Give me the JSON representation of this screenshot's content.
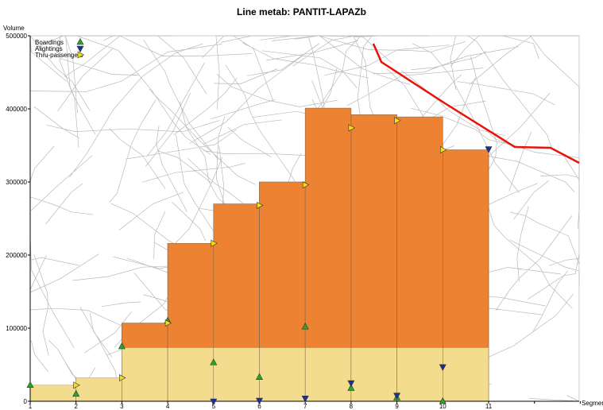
{
  "chart_data": {
    "type": "bar",
    "title": "Line metab: PANTIT-LAPAZb",
    "ylabel": "Volume",
    "xlabel": "Segment",
    "ylim": [
      0,
      500000
    ],
    "y_ticks": [
      0,
      100000,
      200000,
      300000,
      400000,
      500000
    ],
    "x_ticks": [
      1,
      2,
      3,
      4,
      5,
      6,
      7,
      8,
      9,
      10,
      11
    ],
    "segments": [
      {
        "from": 1,
        "to": 2,
        "volume": 22000,
        "base_volume": 22000
      },
      {
        "from": 2,
        "to": 3,
        "volume": 32000,
        "base_volume": 32000
      },
      {
        "from": 3,
        "to": 4,
        "volume": 107000,
        "base_volume": 73000
      },
      {
        "from": 4,
        "to": 5,
        "volume": 216000,
        "base_volume": 73000
      },
      {
        "from": 5,
        "to": 6,
        "volume": 270000,
        "base_volume": 73000
      },
      {
        "from": 6,
        "to": 7,
        "volume": 300000,
        "base_volume": 73000
      },
      {
        "from": 7,
        "to": 8,
        "volume": 401000,
        "base_volume": 73000
      },
      {
        "from": 8,
        "to": 9,
        "volume": 392000,
        "base_volume": 73000
      },
      {
        "from": 9,
        "to": 10,
        "volume": 389000,
        "base_volume": 73000
      },
      {
        "from": 10,
        "to": 11,
        "volume": 344000,
        "base_volume": 73000
      }
    ],
    "series": [
      {
        "name": "Boardings",
        "marker": "triangle-up",
        "color": "#22aa22",
        "points": [
          [
            1,
            22000
          ],
          [
            2,
            10000
          ],
          [
            3,
            75000
          ],
          [
            4,
            110000
          ],
          [
            5,
            53000
          ],
          [
            6,
            33000
          ],
          [
            7,
            102000
          ],
          [
            8,
            18000
          ],
          [
            9,
            5000
          ],
          [
            10,
            0
          ]
        ]
      },
      {
        "name": "Alightings",
        "marker": "triangle-down",
        "color": "#1a2f9e",
        "points": [
          [
            5,
            0
          ],
          [
            6,
            1000
          ],
          [
            7,
            4000
          ],
          [
            8,
            25000
          ],
          [
            9,
            8000
          ],
          [
            10,
            47000
          ],
          [
            11,
            345000
          ]
        ]
      },
      {
        "name": "Thru-passengers",
        "marker": "triangle-right",
        "color": "#f2e010",
        "points": [
          [
            2,
            22000
          ],
          [
            3,
            32000
          ],
          [
            4,
            107000
          ],
          [
            5,
            216000
          ],
          [
            6,
            268000
          ],
          [
            7,
            296000
          ],
          [
            8,
            374000
          ],
          [
            9,
            384000
          ],
          [
            10,
            344000
          ]
        ]
      }
    ],
    "colors": {
      "volume_fill": "#ed8232",
      "base_fill": "#f4dc8e",
      "bar_stroke": "#8a6a4a",
      "route": "#e8140c",
      "map_lines": "#b9b9b9"
    },
    "legend_position": "top-left"
  }
}
